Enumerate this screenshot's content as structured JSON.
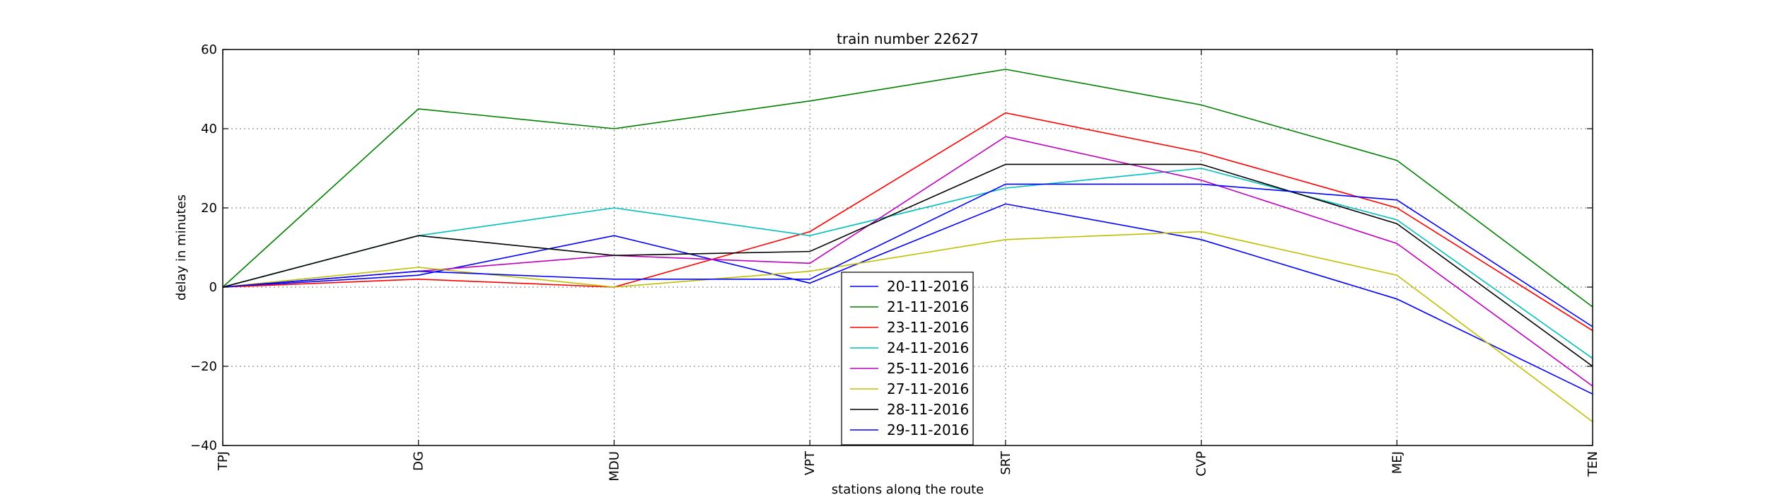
{
  "chart_data": {
    "type": "line",
    "title": "train number 22627",
    "xlabel": "stations along the route",
    "ylabel": "delay in minutes",
    "categories": [
      "TPJ",
      "DG",
      "MDU",
      "VPT",
      "SRT",
      "CVP",
      "MEJ",
      "TEN"
    ],
    "ylim": [
      -40,
      60
    ],
    "yticks": [
      -40,
      -20,
      0,
      20,
      40,
      60
    ],
    "ytick_labels": [
      "−40",
      "−20",
      "0",
      "20",
      "40",
      "60"
    ],
    "grid": true,
    "legend_position": "lower-center",
    "series": [
      {
        "name": "20-11-2016",
        "color": "#0000ff",
        "values": [
          0,
          3,
          13,
          1,
          21,
          12,
          -3,
          -27
        ]
      },
      {
        "name": "21-11-2016",
        "color": "#008000",
        "values": [
          0,
          45,
          40,
          47,
          55,
          46,
          32,
          -5
        ]
      },
      {
        "name": "23-11-2016",
        "color": "#ff0000",
        "values": [
          0,
          2,
          0,
          14,
          44,
          34,
          20,
          -11
        ]
      },
      {
        "name": "24-11-2016",
        "color": "#00bfbf",
        "values": [
          0,
          13,
          20,
          13,
          25,
          30,
          17,
          -18
        ]
      },
      {
        "name": "25-11-2016",
        "color": "#bf00bf",
        "values": [
          0,
          4,
          8,
          6,
          38,
          27,
          11,
          -25
        ]
      },
      {
        "name": "27-11-2016",
        "color": "#bfbf00",
        "values": [
          0,
          5,
          0,
          4,
          12,
          14,
          3,
          -34
        ]
      },
      {
        "name": "28-11-2016",
        "color": "#000000",
        "values": [
          0,
          13,
          8,
          9,
          31,
          31,
          16,
          -20
        ]
      },
      {
        "name": "29-11-2016",
        "color": "#0000ff",
        "values": [
          0,
          4,
          2,
          2,
          26,
          26,
          22,
          -10
        ]
      }
    ]
  }
}
